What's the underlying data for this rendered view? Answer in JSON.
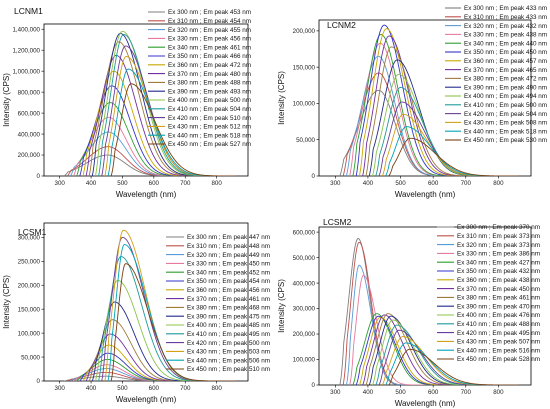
{
  "figure": {
    "palette": [
      "#7f7f7f",
      "#c0504d",
      "#5b9bd5",
      "#e6799c",
      "#2e9e2e",
      "#3333cc",
      "#c8a800",
      "#7030a0",
      "#9e7b3c",
      "#222a8c",
      "#8bc34a",
      "#1f9a9a",
      "#6a3d9a",
      "#d4a017",
      "#00a3b8",
      "#7a3e10"
    ]
  },
  "chart_data": [
    {
      "type": "line",
      "panel": "LCNM1",
      "xlabel": "Wavelength (nm)",
      "ylabel": "Intensity (CPS)",
      "xlim": [
        250,
        900
      ],
      "ylim": [
        0,
        1450000
      ],
      "xticks": [
        "300",
        "400",
        "500",
        "600",
        "700",
        "800"
      ],
      "yticks": [
        "0",
        "200,000",
        "400,000",
        "600,000",
        "800,000",
        "1,000,000",
        "1,200,000",
        "1,400,000"
      ],
      "series": [
        {
          "name": "Ex 300 nm ; Em peak 453 nm",
          "excitation": 300,
          "peak_x": 453,
          "peak_y": 200000
        },
        {
          "name": "Ex 310 nm ; Em peak 454 nm",
          "excitation": 310,
          "peak_x": 454,
          "peak_y": 280000
        },
        {
          "name": "Ex 320 nm ; Em peak 455 nm",
          "excitation": 320,
          "peak_x": 455,
          "peak_y": 420000
        },
        {
          "name": "Ex 330 nm ; Em peak 456 nm",
          "excitation": 330,
          "peak_x": 456,
          "peak_y": 560000
        },
        {
          "name": "Ex 340 nm ; Em peak 461 nm",
          "excitation": 340,
          "peak_x": 461,
          "peak_y": 700000
        },
        {
          "name": "Ex 350 nm ; Em peak 466 nm",
          "excitation": 350,
          "peak_x": 466,
          "peak_y": 860000
        },
        {
          "name": "Ex 360 nm ; Em peak 472 nm",
          "excitation": 360,
          "peak_x": 472,
          "peak_y": 1000000
        },
        {
          "name": "Ex 370 nm ; Em peak 480 nm",
          "excitation": 370,
          "peak_x": 480,
          "peak_y": 1150000
        },
        {
          "name": "Ex 380 nm ; Em peak 488 nm",
          "excitation": 380,
          "peak_x": 488,
          "peak_y": 1280000
        },
        {
          "name": "Ex 390 nm ; Em peak 493 nm",
          "excitation": 390,
          "peak_x": 493,
          "peak_y": 1360000
        },
        {
          "name": "Ex 400 nm ; Em peak 500 nm",
          "excitation": 400,
          "peak_x": 500,
          "peak_y": 1380000
        },
        {
          "name": "Ex 410 nm ; Em peak 504 nm",
          "excitation": 410,
          "peak_x": 504,
          "peak_y": 1350000
        },
        {
          "name": "Ex 420 nm ; Em peak 510 nm",
          "excitation": 420,
          "peak_x": 510,
          "peak_y": 1240000
        },
        {
          "name": "Ex 430 nm ; Em peak 512 nm",
          "excitation": 430,
          "peak_x": 512,
          "peak_y": 1140000
        },
        {
          "name": "Ex 440 nm ; Em peak 518 nm",
          "excitation": 440,
          "peak_x": 518,
          "peak_y": 1020000
        },
        {
          "name": "Ex 450 nm ; Em peak 527 nm",
          "excitation": 450,
          "peak_x": 527,
          "peak_y": 880000
        }
      ]
    },
    {
      "type": "line",
      "panel": "LCNM2",
      "xlabel": "Wavelength (nm)",
      "ylabel": "Intensity (CPS)",
      "xlim": [
        250,
        900
      ],
      "ylim": [
        0,
        215000
      ],
      "xticks": [
        "300",
        "400",
        "500",
        "600",
        "700",
        "800"
      ],
      "yticks": [
        "0",
        "50,000",
        "100,000",
        "150,000",
        "200,000"
      ],
      "series": [
        {
          "name": "Ex 300 nm ; Em peak 433 nm",
          "excitation": 300,
          "peak_x": 433,
          "peak_y": 118000
        },
        {
          "name": "Ex 310 nm ; Em peak 433 nm",
          "excitation": 310,
          "peak_x": 433,
          "peak_y": 142000
        },
        {
          "name": "Ex 320 nm ; Em peak 432 nm",
          "excitation": 320,
          "peak_x": 432,
          "peak_y": 165000
        },
        {
          "name": "Ex 330 nm ; Em peak 438 nm",
          "excitation": 330,
          "peak_x": 438,
          "peak_y": 183000
        },
        {
          "name": "Ex 340 nm ; Em peak 440 nm",
          "excitation": 340,
          "peak_x": 440,
          "peak_y": 195000
        },
        {
          "name": "Ex 350 nm ; Em peak 450 nm",
          "excitation": 350,
          "peak_x": 450,
          "peak_y": 208000
        },
        {
          "name": "Ex 360 nm ; Em peak 457 nm",
          "excitation": 360,
          "peak_x": 457,
          "peak_y": 203000
        },
        {
          "name": "Ex 370 nm ; Em peak 465 nm",
          "excitation": 370,
          "peak_x": 465,
          "peak_y": 193000
        },
        {
          "name": "Ex 380 nm ; Em peak 472 nm",
          "excitation": 380,
          "peak_x": 472,
          "peak_y": 178000
        },
        {
          "name": "Ex 390 nm ; Em peak 490 nm",
          "excitation": 390,
          "peak_x": 490,
          "peak_y": 160000
        },
        {
          "name": "Ex 400 nm ; Em peak 494 nm",
          "excitation": 400,
          "peak_x": 494,
          "peak_y": 140000
        },
        {
          "name": "Ex 410 nm ; Em peak 500 nm",
          "excitation": 410,
          "peak_x": 500,
          "peak_y": 122000
        },
        {
          "name": "Ex 420 nm ; Em peak 504 nm",
          "excitation": 420,
          "peak_x": 504,
          "peak_y": 102000
        },
        {
          "name": "Ex 430 nm ; Em peak 508 nm",
          "excitation": 430,
          "peak_x": 508,
          "peak_y": 85000
        },
        {
          "name": "Ex 440 nm ; Em peak 518 nm",
          "excitation": 440,
          "peak_x": 518,
          "peak_y": 68000
        },
        {
          "name": "Ex 450 nm ; Em peak 530 nm",
          "excitation": 450,
          "peak_x": 530,
          "peak_y": 52000
        }
      ]
    },
    {
      "type": "line",
      "panel": "LCSM1",
      "xlabel": "Wavelength (nm)",
      "ylabel": "Intensity (CPS)",
      "xlim": [
        250,
        900
      ],
      "ylim": [
        0,
        330000
      ],
      "xticks": [
        "300",
        "400",
        "500",
        "600",
        "700",
        "800"
      ],
      "yticks": [
        "0",
        "50,000",
        "100,000",
        "150,000",
        "200,000",
        "250,000",
        "300,000"
      ],
      "series": [
        {
          "name": "Ex 300 nm ; Em peak 447 nm",
          "excitation": 300,
          "peak_x": 447,
          "peak_y": 10000
        },
        {
          "name": "Ex 310 nm ; Em peak 448 nm",
          "excitation": 310,
          "peak_x": 448,
          "peak_y": 18000
        },
        {
          "name": "Ex 320 nm ; Em peak 449 nm",
          "excitation": 320,
          "peak_x": 449,
          "peak_y": 26000
        },
        {
          "name": "Ex 330 nm ; Em peak 450 nm",
          "excitation": 330,
          "peak_x": 450,
          "peak_y": 34000
        },
        {
          "name": "Ex 340 nm ; Em peak 452 nm",
          "excitation": 340,
          "peak_x": 452,
          "peak_y": 45000
        },
        {
          "name": "Ex 350 nm ; Em peak 454 nm",
          "excitation": 350,
          "peak_x": 454,
          "peak_y": 58000
        },
        {
          "name": "Ex 360 nm ; Em peak 456 nm",
          "excitation": 360,
          "peak_x": 456,
          "peak_y": 75000
        },
        {
          "name": "Ex 370 nm ; Em peak 461 nm",
          "excitation": 370,
          "peak_x": 461,
          "peak_y": 98000
        },
        {
          "name": "Ex 380 nm ; Em peak 468 nm",
          "excitation": 380,
          "peak_x": 468,
          "peak_y": 128000
        },
        {
          "name": "Ex 390 nm ; Em peak 475 nm",
          "excitation": 390,
          "peak_x": 475,
          "peak_y": 165000
        },
        {
          "name": "Ex 400 nm ; Em peak 485 nm",
          "excitation": 400,
          "peak_x": 485,
          "peak_y": 210000
        },
        {
          "name": "Ex 410 nm ; Em peak 495 nm",
          "excitation": 410,
          "peak_x": 495,
          "peak_y": 260000
        },
        {
          "name": "Ex 420 nm ; Em peak 500 nm",
          "excitation": 420,
          "peak_x": 500,
          "peak_y": 300000
        },
        {
          "name": "Ex 430 nm ; Em peak 503 nm",
          "excitation": 430,
          "peak_x": 503,
          "peak_y": 315000
        },
        {
          "name": "Ex 440 nm ; Em peak 506 nm",
          "excitation": 440,
          "peak_x": 506,
          "peak_y": 285000
        },
        {
          "name": "Ex 450 nm ; Em peak 510 nm",
          "excitation": 450,
          "peak_x": 510,
          "peak_y": 245000
        }
      ]
    },
    {
      "type": "line",
      "panel": "LCSM2",
      "xlabel": "Wavelength (nm)",
      "ylabel": "Intensity (CPS)",
      "xlim": [
        250,
        900
      ],
      "ylim": [
        0,
        620000
      ],
      "xticks": [
        "300",
        "400",
        "500",
        "600",
        "700",
        "800"
      ],
      "yticks": [
        "0",
        "100,000",
        "200,000",
        "300,000",
        "400,000",
        "500,000",
        "600,000"
      ],
      "series": [
        {
          "name": "Ex 300 nm ; Em peak 370 nm",
          "excitation": 300,
          "peak_x": 370,
          "peak_y": 575000
        },
        {
          "name": "Ex 310 nm ; Em peak 373 nm",
          "excitation": 310,
          "peak_x": 373,
          "peak_y": 560000
        },
        {
          "name": "Ex 320 nm ; Em peak 373 nm",
          "excitation": 320,
          "peak_x": 373,
          "peak_y": 470000
        },
        {
          "name": "Ex 330 nm ; Em peak 386 nm",
          "excitation": 330,
          "peak_x": 386,
          "peak_y": 430000
        },
        {
          "name": "Ex 340 nm ; Em peak 427 nm",
          "excitation": 340,
          "peak_x": 427,
          "peak_y": 280000
        },
        {
          "name": "Ex 350 nm ; Em peak 432 nm",
          "excitation": 350,
          "peak_x": 432,
          "peak_y": 270000
        },
        {
          "name": "Ex 360 nm ; Em peak 438 nm",
          "excitation": 360,
          "peak_x": 438,
          "peak_y": 265000
        },
        {
          "name": "Ex 370 nm ; Em peak 450 nm",
          "excitation": 370,
          "peak_x": 450,
          "peak_y": 275000
        },
        {
          "name": "Ex 380 nm ; Em peak 461 nm",
          "excitation": 380,
          "peak_x": 461,
          "peak_y": 280000
        },
        {
          "name": "Ex 390 nm ; Em peak 470 nm",
          "excitation": 390,
          "peak_x": 470,
          "peak_y": 270000
        },
        {
          "name": "Ex 400 nm ; Em peak 476 nm",
          "excitation": 400,
          "peak_x": 476,
          "peak_y": 255000
        },
        {
          "name": "Ex 410 nm ; Em peak 488 nm",
          "excitation": 410,
          "peak_x": 488,
          "peak_y": 235000
        },
        {
          "name": "Ex 420 nm ; Em peak 495 nm",
          "excitation": 420,
          "peak_x": 495,
          "peak_y": 215000
        },
        {
          "name": "Ex 430 nm ; Em peak 507 nm",
          "excitation": 430,
          "peak_x": 507,
          "peak_y": 190000
        },
        {
          "name": "Ex 440 nm ; Em peak 516 nm",
          "excitation": 440,
          "peak_x": 516,
          "peak_y": 165000
        },
        {
          "name": "Ex 450 nm ; Em peak 528 nm",
          "excitation": 450,
          "peak_x": 528,
          "peak_y": 140000
        }
      ]
    }
  ]
}
